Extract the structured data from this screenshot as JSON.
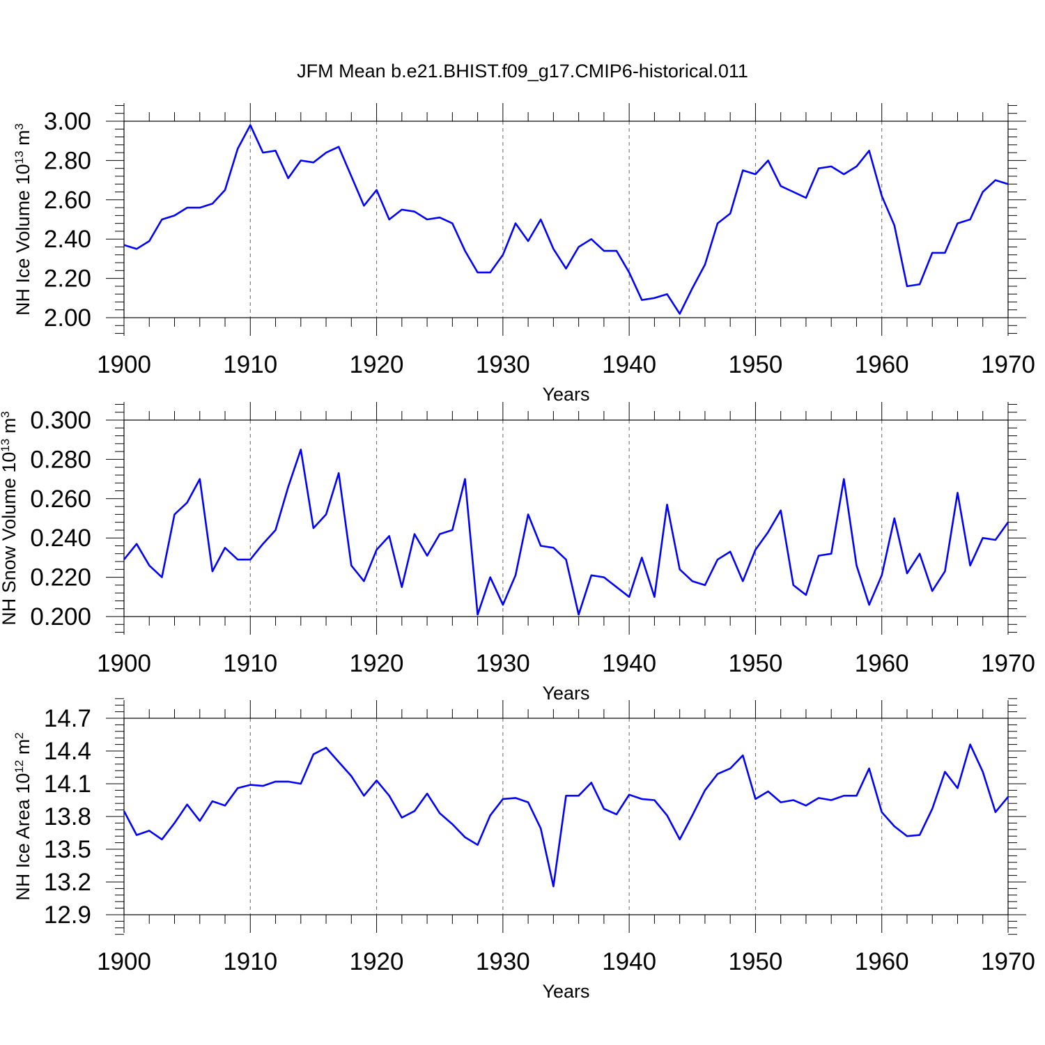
{
  "title": "JFM Mean b.e21.BHIST.f09_g17.CMIP6-historical.011",
  "line_color": "#0000ff",
  "chart_data": [
    {
      "type": "line",
      "ylabel_base": "NH Ice Volume 10",
      "ylabel_exp": "13",
      "ylabel_unit": " m",
      "ylabel_unit_exp": "3",
      "xlabel": "Years",
      "xlim": [
        1900,
        1970
      ],
      "ylim": [
        2.0,
        3.0
      ],
      "xticks": [
        1900,
        1910,
        1920,
        1930,
        1940,
        1950,
        1960,
        1970
      ],
      "yticks": [
        "2.00",
        "2.20",
        "2.40",
        "2.60",
        "2.80",
        "3.00"
      ],
      "grid": "vertical dashed at decades",
      "series": [
        {
          "name": "NH Ice Volume",
          "x_start": 1900,
          "values": [
            2.37,
            2.35,
            2.39,
            2.5,
            2.52,
            2.56,
            2.56,
            2.58,
            2.65,
            2.86,
            2.98,
            2.84,
            2.85,
            2.71,
            2.8,
            2.79,
            2.84,
            2.87,
            2.72,
            2.57,
            2.65,
            2.5,
            2.55,
            2.54,
            2.5,
            2.51,
            2.48,
            2.34,
            2.23,
            2.23,
            2.32,
            2.48,
            2.39,
            2.5,
            2.35,
            2.25,
            2.36,
            2.4,
            2.34,
            2.34,
            2.23,
            2.09,
            2.1,
            2.12,
            2.02,
            2.15,
            2.27,
            2.48,
            2.53,
            2.75,
            2.73,
            2.8,
            2.67,
            2.64,
            2.61,
            2.76,
            2.77,
            2.73,
            2.77,
            2.85,
            2.62,
            2.47,
            2.16,
            2.17,
            2.33,
            2.33,
            2.48,
            2.5,
            2.64,
            2.7,
            2.68
          ]
        }
      ]
    },
    {
      "type": "line",
      "ylabel_base": "NH Snow Volume 10",
      "ylabel_exp": "13",
      "ylabel_unit": " m",
      "ylabel_unit_exp": "3",
      "xlabel": "Years",
      "xlim": [
        1900,
        1970
      ],
      "ylim": [
        0.2,
        0.3
      ],
      "xticks": [
        1900,
        1910,
        1920,
        1930,
        1940,
        1950,
        1960,
        1970
      ],
      "yticks": [
        "0.200",
        "0.220",
        "0.240",
        "0.260",
        "0.280",
        "0.300"
      ],
      "grid": "vertical dashed at decades",
      "series": [
        {
          "name": "NH Snow Volume",
          "x_start": 1900,
          "values": [
            0.229,
            0.237,
            0.226,
            0.22,
            0.252,
            0.258,
            0.27,
            0.223,
            0.235,
            0.229,
            0.229,
            0.237,
            0.244,
            0.266,
            0.285,
            0.245,
            0.252,
            0.273,
            0.226,
            0.218,
            0.234,
            0.241,
            0.215,
            0.242,
            0.231,
            0.242,
            0.244,
            0.27,
            0.201,
            0.22,
            0.206,
            0.221,
            0.252,
            0.236,
            0.235,
            0.229,
            0.201,
            0.221,
            0.22,
            0.215,
            0.21,
            0.23,
            0.21,
            0.257,
            0.224,
            0.218,
            0.216,
            0.229,
            0.233,
            0.218,
            0.234,
            0.243,
            0.254,
            0.216,
            0.211,
            0.231,
            0.232,
            0.27,
            0.226,
            0.206,
            0.221,
            0.25,
            0.222,
            0.232,
            0.213,
            0.223,
            0.263,
            0.226,
            0.24,
            0.239,
            0.248
          ]
        }
      ]
    },
    {
      "type": "line",
      "ylabel_base": "NH Ice Area 10",
      "ylabel_exp": "12",
      "ylabel_unit": " m",
      "ylabel_unit_exp": "2",
      "xlabel": "Years",
      "xlim": [
        1900,
        1970
      ],
      "ylim": [
        12.9,
        14.7
      ],
      "xticks": [
        1900,
        1910,
        1920,
        1930,
        1940,
        1950,
        1960,
        1970
      ],
      "yticks": [
        "12.9",
        "13.2",
        "13.5",
        "13.8",
        "14.1",
        "14.4",
        "14.7"
      ],
      "grid": "vertical dashed at decades",
      "series": [
        {
          "name": "NH Ice Area",
          "x_start": 1900,
          "values": [
            13.85,
            13.63,
            13.67,
            13.59,
            13.74,
            13.91,
            13.76,
            13.94,
            13.9,
            14.06,
            14.09,
            14.08,
            14.12,
            14.12,
            14.1,
            14.37,
            14.43,
            14.3,
            14.17,
            13.99,
            14.13,
            13.99,
            13.79,
            13.85,
            14.01,
            13.83,
            13.73,
            13.61,
            13.54,
            13.81,
            13.96,
            13.97,
            13.93,
            13.69,
            13.16,
            13.99,
            13.99,
            14.11,
            13.87,
            13.82,
            14.0,
            13.96,
            13.95,
            13.81,
            13.59,
            13.81,
            14.04,
            14.19,
            14.24,
            14.36,
            13.96,
            14.03,
            13.93,
            13.95,
            13.9,
            13.97,
            13.95,
            13.99,
            13.99,
            14.24,
            13.84,
            13.71,
            13.62,
            13.63,
            13.87,
            14.21,
            14.06,
            14.46,
            14.21,
            13.84,
            13.98
          ]
        }
      ]
    }
  ]
}
